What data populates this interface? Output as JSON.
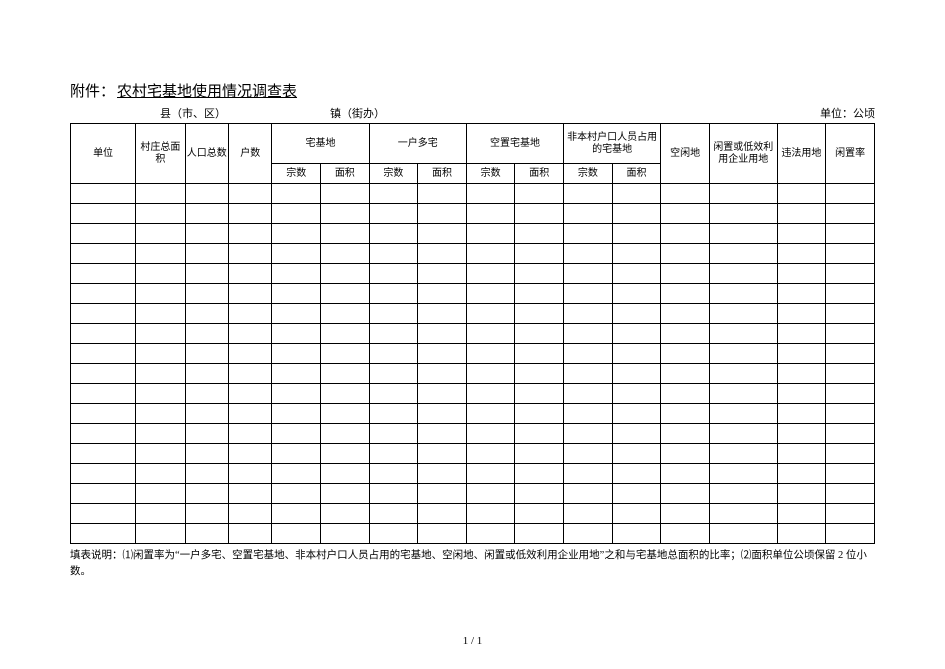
{
  "header": {
    "prefix": "附件：",
    "title": "农村宅基地使用情况调查表",
    "region_label": "县（市、区）",
    "town_label": "镇（街办）",
    "unit_label": "单位：公顷"
  },
  "table": {
    "columns_top": {
      "c1": "单位",
      "c2": "村庄总面积",
      "c3": "人口总数",
      "c4": "户数",
      "c5": "宅基地",
      "c6": "一户多宅",
      "c7": "空置宅基地",
      "c8": "非本村户口人员占用的宅基地",
      "c9": "空闲地",
      "c10": "闲置或低效利用企业用地",
      "c11": "违法用地",
      "c12": "闲置率"
    },
    "columns_sub": {
      "zongshu": "宗数",
      "mianji": "面积"
    },
    "body_rows": 18,
    "body_cols": 16,
    "col_widths_pct": [
      7.5,
      5.7,
      5.0,
      5.0,
      5.6,
      5.6,
      5.6,
      5.6,
      5.6,
      5.6,
      5.6,
      5.6,
      5.6,
      7.8,
      5.6,
      5.6
    ],
    "border_color": "#000000",
    "background": "#ffffff",
    "font_size_pt": 10,
    "header_group_heights": [
      20,
      20
    ]
  },
  "footnote": {
    "text": "填表说明：⑴闲置率为“一户多宅、空置宅基地、非本村户口人员占用的宅基地、空闲地、闲置或低效利用企业用地”之和与宅基地总面积的比率；⑵面积单位公顷保留 2 位小数。"
  },
  "pager": {
    "text": "1 / 1"
  }
}
